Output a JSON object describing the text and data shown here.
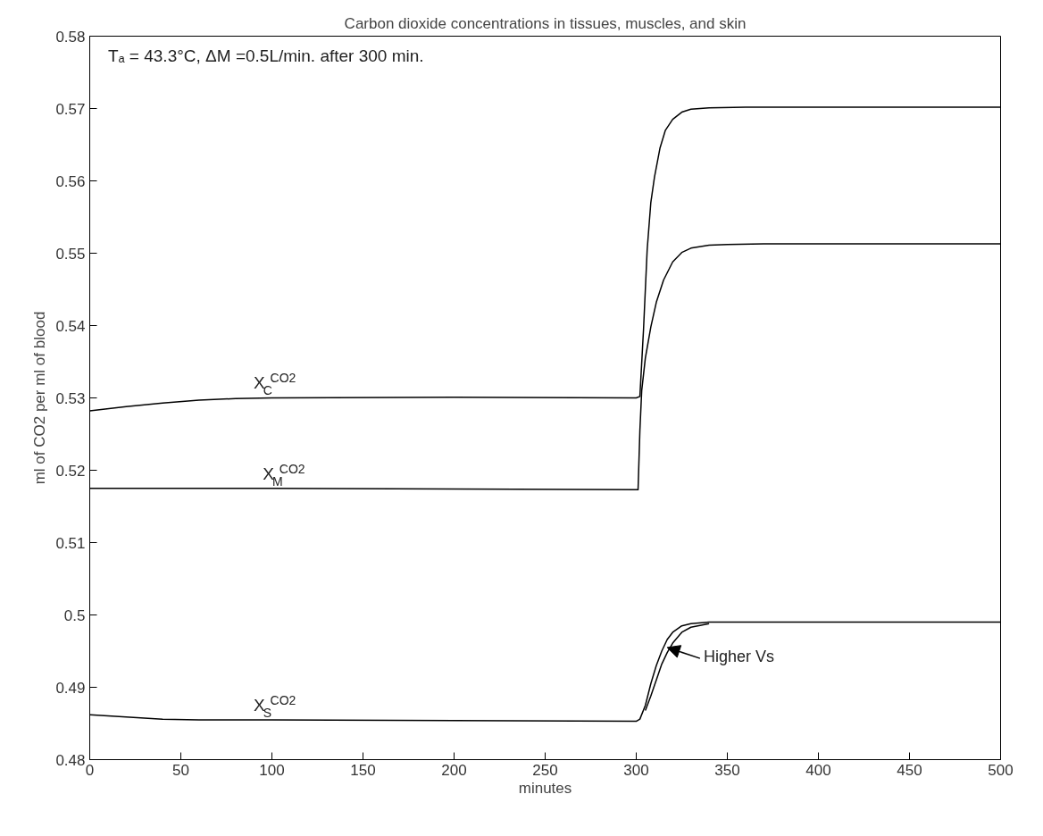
{
  "chart_data": {
    "type": "line",
    "title": "Carbon dioxide concentrations in tissues, muscles, and skin",
    "xlabel": "minutes",
    "ylabel": "ml of CO2 per ml of blood",
    "xlim": [
      0,
      500
    ],
    "ylim": [
      0.48,
      0.58
    ],
    "xticks": [
      0,
      50,
      100,
      150,
      200,
      250,
      300,
      350,
      400,
      450,
      500
    ],
    "yticks": [
      0.48,
      0.49,
      {
        "value": 0.5,
        "label": "0.5"
      },
      0.51,
      0.52,
      0.53,
      0.54,
      0.55,
      0.56,
      0.57,
      0.58
    ],
    "grid": false,
    "line_style": "solid",
    "marker": "none",
    "series": [
      {
        "color": "#000000",
        "x": [
          0,
          20,
          40,
          60,
          80,
          100,
          200,
          300,
          302,
          304,
          306,
          308,
          310,
          313,
          316,
          320,
          325,
          330,
          340,
          360,
          400,
          500
        ],
        "values": [
          0.5282,
          0.5288,
          0.5293,
          0.5297,
          0.5299,
          0.53,
          0.5301,
          0.53,
          0.5302,
          0.5395,
          0.5505,
          0.557,
          0.5605,
          0.5645,
          0.567,
          0.5685,
          0.5695,
          0.5699,
          0.5701,
          0.5702,
          0.5702,
          0.5702
        ]
      },
      {
        "color": "#000000",
        "x": [
          0,
          100,
          200,
          301,
          302,
          303,
          305,
          308,
          311,
          315,
          320,
          325,
          330,
          340,
          350,
          370,
          400,
          500
        ],
        "values": [
          0.5175,
          0.5175,
          0.5174,
          0.5173,
          0.5255,
          0.531,
          0.5355,
          0.5398,
          0.5432,
          0.5463,
          0.5488,
          0.5501,
          0.5507,
          0.5511,
          0.5512,
          0.5513,
          0.5513,
          0.5513
        ]
      },
      {
        "color": "#000000",
        "x": [
          0,
          20,
          40,
          60,
          100,
          200,
          300,
          302,
          305,
          308,
          311,
          314,
          317,
          320,
          325,
          330,
          340,
          360,
          400,
          500
        ],
        "values": [
          0.4862,
          0.4859,
          0.4856,
          0.4855,
          0.4855,
          0.4854,
          0.4853,
          0.4856,
          0.4875,
          0.4905,
          0.493,
          0.495,
          0.4966,
          0.4976,
          0.4985,
          0.4988,
          0.499,
          0.499,
          0.499,
          0.499
        ]
      },
      {
        "color": "#000000",
        "x": [
          305,
          308,
          311,
          314,
          317,
          320,
          325,
          330,
          340
        ],
        "values": [
          0.4868,
          0.4888,
          0.491,
          0.4932,
          0.4948,
          0.4961,
          0.4976,
          0.4983,
          0.4988
        ]
      }
    ],
    "annotations": [
      {
        "text": "Tₐ = 43.3°C, ΔM =0.5L/min.  after  300  min."
      },
      {
        "text": "X$_{C}$$^{CO2}$",
        "x": 90,
        "y": 0.5301
      },
      {
        "text": "X$_{M}$$^{CO2}$",
        "x": 95,
        "y": 0.5175
      },
      {
        "text": "X$_{S}$$^{CO2}$",
        "x": 90,
        "y": 0.4855
      },
      {
        "text": "Higher Vs",
        "x": 317,
        "y": 0.4955
      }
    ]
  }
}
